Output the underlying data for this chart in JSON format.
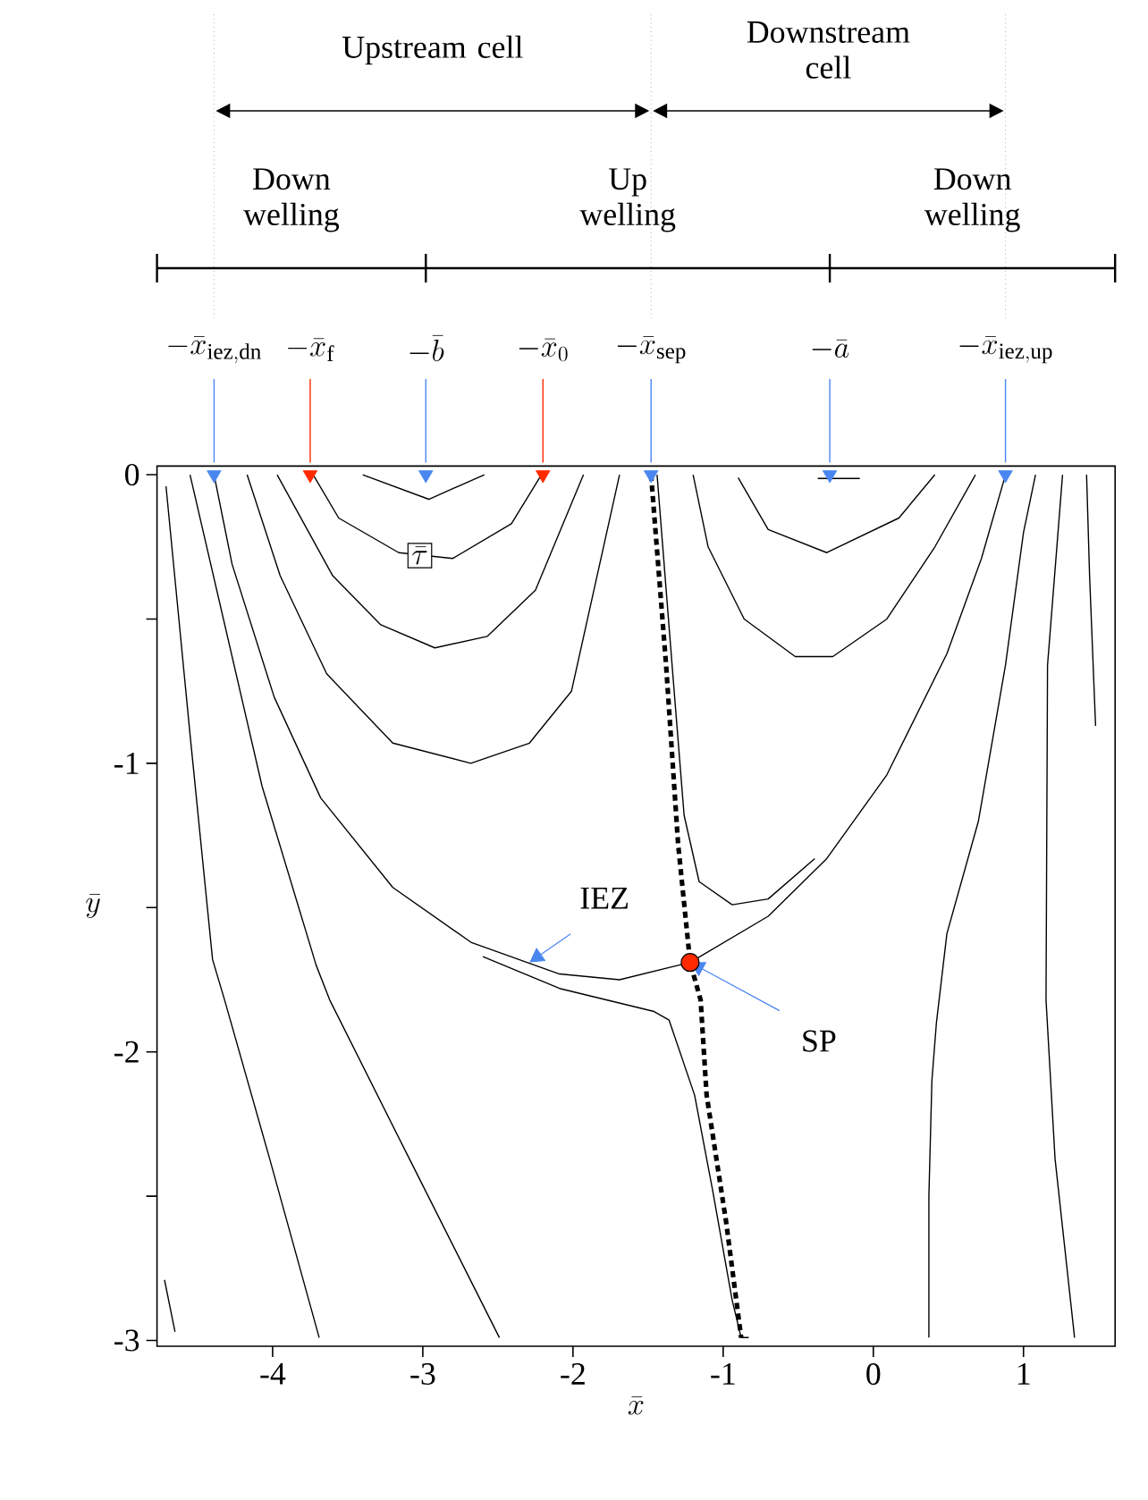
{
  "chart_data": {
    "type": "line",
    "xlabel": "\\bar{x}",
    "ylabel": "\\bar{y}",
    "xlim": [
      -4.77,
      1.61
    ],
    "ylim": [
      -3.02,
      0.03
    ],
    "xticks": [
      -4,
      -3,
      -2,
      -1,
      0,
      1
    ],
    "yticks": [
      0,
      {
        "value": -0.5,
        "label": null
      },
      -1,
      {
        "value": -1.5,
        "label": null
      },
      -2,
      {
        "value": -2.5,
        "label": null
      },
      -3
    ],
    "marker": "none",
    "line_style": "solid",
    "series": [
      {
        "color": "#000000",
        "x": [
          -4.39,
          -4.27,
          -3.99,
          -3.68,
          -3.2,
          -2.68,
          -2.09,
          -1.69,
          -1.3,
          -1.22,
          -0.7,
          -0.31,
          0.09,
          0.49,
          0.72,
          0.88
        ],
        "values": [
          0,
          -0.31,
          -0.77,
          -1.12,
          -1.43,
          -1.62,
          -1.73,
          -1.75,
          -1.7,
          -1.69,
          -1.53,
          -1.33,
          -1.04,
          -0.62,
          -0.29,
          0
        ]
      },
      {
        "color": "#000000",
        "line_style": "dashed",
        "x": [
          -1.48,
          -1.38,
          -1.3,
          -1.22,
          -1.15,
          -1.11,
          -0.98,
          -0.88
        ],
        "values": [
          0,
          -0.66,
          -1.28,
          -1.69,
          -1.82,
          -2.15,
          -2.59,
          -2.99
        ]
      },
      {
        "color": "#000000",
        "x": [
          -3.4,
          -2.96,
          -2.59
        ],
        "values": [
          0,
          -0.085,
          0
        ]
      },
      {
        "color": "#000000",
        "x": [
          -3.73,
          -3.56,
          -3.16,
          -2.8,
          -2.41,
          -2.21
        ],
        "values": [
          0,
          -0.15,
          -0.27,
          -0.29,
          -0.17,
          0
        ]
      },
      {
        "color": "#000000",
        "x": [
          -3.97,
          -3.6,
          -3.28,
          -2.92,
          -2.57,
          -2.25,
          -1.93
        ],
        "values": [
          0,
          -0.35,
          -0.52,
          -0.6,
          -0.56,
          -0.4,
          0
        ]
      },
      {
        "color": "#000000",
        "x": [
          -4.17,
          -3.95,
          -3.64,
          -3.2,
          -2.68,
          -2.29,
          -2.01,
          -1.69
        ],
        "values": [
          0,
          -0.35,
          -0.69,
          -0.93,
          -1.0,
          -0.93,
          -0.75,
          0
        ]
      },
      {
        "color": "#000000",
        "x": [
          -4.71,
          -4.55,
          -4.4,
          -4.32,
          -4.02,
          -3.69
        ],
        "values": [
          -0.04,
          -0.9,
          -1.68,
          -1.82,
          -2.37,
          -2.99
        ]
      },
      {
        "color": "#000000",
        "x": [
          -4.55,
          -4.07,
          -3.71,
          -3.62,
          -3.09,
          -2.49
        ],
        "values": [
          0,
          -1.08,
          -1.7,
          -1.82,
          -2.37,
          -2.99
        ]
      },
      {
        "color": "#000000",
        "x": [
          -2.6,
          -2.09,
          -1.46,
          -1.36,
          -1.19,
          -1.07,
          -0.94,
          -0.88,
          -0.83
        ],
        "values": [
          -1.67,
          -1.78,
          -1.86,
          -1.89,
          -2.15,
          -2.48,
          -2.86,
          -2.99,
          -2.99
        ]
      },
      {
        "color": "#000000",
        "x": [
          -4.72,
          -4.65
        ],
        "values": [
          -2.79,
          -2.97
        ]
      },
      {
        "color": "#000000",
        "x": [
          -1.44,
          -1.34,
          -1.26,
          -1.16,
          -0.94,
          -0.7,
          -0.39
        ],
        "values": [
          0,
          -0.66,
          -1.18,
          -1.41,
          -1.49,
          -1.47,
          -1.33
        ]
      },
      {
        "color": "#000000",
        "x": [
          -0.37,
          -0.09
        ],
        "values": [
          -0.013,
          -0.013
        ]
      },
      {
        "color": "#000000",
        "x": [
          -0.9,
          -0.7,
          -0.31,
          0.17,
          0.41
        ],
        "values": [
          -0.01,
          -0.19,
          -0.27,
          -0.15,
          0
        ]
      },
      {
        "color": "#000000",
        "x": [
          -1.2,
          -1.1,
          -0.86,
          -0.52,
          -0.27,
          0.09,
          0.41,
          0.68
        ],
        "values": [
          0,
          -0.25,
          -0.5,
          -0.63,
          -0.63,
          -0.5,
          -0.25,
          0
        ]
      },
      {
        "color": "#000000",
        "x": [
          1.08,
          1.0,
          0.88,
          0.7,
          0.49,
          0.42,
          0.39,
          0.37,
          0.37
        ],
        "values": [
          0,
          -0.2,
          -0.66,
          -1.2,
          -1.59,
          -1.9,
          -2.1,
          -2.5,
          -2.99
        ]
      },
      {
        "color": "#000000",
        "x": [
          1.26,
          1.16,
          1.15,
          1.21,
          1.34
        ],
        "values": [
          0,
          -0.66,
          -1.82,
          -2.37,
          -2.99
        ]
      },
      {
        "color": "#000000",
        "x": [
          1.42,
          1.44,
          1.48
        ],
        "values": [
          0,
          -0.35,
          -0.87
        ]
      },
      {
        "type": "scatter",
        "marker": "circle",
        "color": "#ff2a00",
        "x": [
          -1.22
        ],
        "values": [
          -1.69
        ]
      },
      {
        "type": "scatter",
        "marker": "triangle",
        "colors": [
          "#4a86f0",
          "#ff2a00",
          "#4a86f0",
          "#ff2a00",
          "#4a86f0",
          "#4a86f0",
          "#4a86f0"
        ],
        "x": [
          -4.39,
          -3.75,
          -2.98,
          -2.2,
          -1.48,
          -0.29,
          0.88
        ],
        "values": [
          0,
          0,
          0,
          0,
          0,
          0,
          0
        ]
      }
    ],
    "annotations": [
      "-\\bar{x}_{\\mathrm{iez,dn}}",
      "-\\bar{x}_{\\mathrm{f}}",
      "-\\bar{b}",
      "-\\bar{x}_{0}",
      "-\\bar{x}_{\\mathrm{sep}}",
      "-\\bar{a}",
      "-\\bar{x}_{\\mathrm{iez,up}}",
      "Upstream cell",
      "Downstream cell",
      "Down welling",
      "Up welling",
      "Down welling",
      {
        "text": "IEZ",
        "x": -2.29,
        "y": -1.69
      },
      {
        "text": "SP",
        "x": -1.22,
        "y": -1.69
      },
      {
        "text": "\\bar{\\tau}",
        "x": -3.02,
        "y": -0.28
      }
    ]
  }
}
